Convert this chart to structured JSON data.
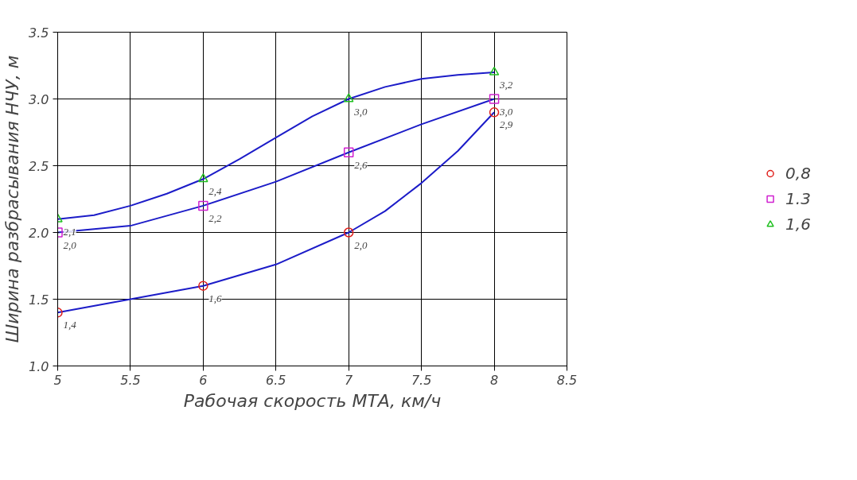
{
  "chart_data": {
    "type": "scatter",
    "xlabel": "Рабочая скорость МТА, км/ч",
    "ylabel": "Ширина разбрасывания НЧУ, м",
    "xlim": [
      5,
      8.5
    ],
    "ylim": [
      1.0,
      3.5
    ],
    "xticks": [
      {
        "value": 5,
        "label": "5"
      },
      {
        "value": 5.5,
        "label": "5.5"
      },
      {
        "value": 6,
        "label": "6"
      },
      {
        "value": 6.5,
        "label": "6.5"
      },
      {
        "value": 7,
        "label": "7"
      },
      {
        "value": 7.5,
        "label": "7.5"
      },
      {
        "value": 8,
        "label": "8"
      },
      {
        "value": 8.5,
        "label": "8.5"
      }
    ],
    "yticks": [
      {
        "value": 1.0,
        "label": "1.0"
      },
      {
        "value": 1.5,
        "label": "1.5"
      },
      {
        "value": 2.0,
        "label": "2.0"
      },
      {
        "value": 2.5,
        "label": "2.5"
      },
      {
        "value": 3.0,
        "label": "3.0"
      },
      {
        "value": 3.5,
        "label": "3.5"
      }
    ],
    "grid": true,
    "legend": "right",
    "line_style": "solid",
    "series": [
      {
        "type": "line",
        "color": "#1c1cc8",
        "x": [
          5,
          5.5,
          6,
          6.5,
          7,
          7.25,
          7.5,
          7.75,
          8
        ],
        "values": [
          1.4,
          1.5,
          1.6,
          1.76,
          2.0,
          2.16,
          2.37,
          2.61,
          2.9
        ]
      },
      {
        "type": "line",
        "color": "#1c1cc8",
        "x": [
          5,
          5.5,
          6,
          6.5,
          7,
          7.5,
          8
        ],
        "values": [
          2.0,
          2.05,
          2.2,
          2.38,
          2.6,
          2.81,
          3.0
        ]
      },
      {
        "type": "line",
        "color": "#1c1cc8",
        "x": [
          5,
          5.25,
          5.5,
          5.75,
          6,
          6.25,
          6.5,
          6.75,
          7,
          7.25,
          7.5,
          7.75,
          8
        ],
        "values": [
          2.1,
          2.13,
          2.2,
          2.29,
          2.4,
          2.55,
          2.71,
          2.87,
          3.0,
          3.09,
          3.15,
          3.18,
          3.2
        ]
      },
      {
        "name": "0,8",
        "color": "#e0201c",
        "marker": "circle",
        "x": [
          5,
          6,
          7,
          8
        ],
        "values": [
          1.4,
          1.6,
          2.0,
          2.9
        ],
        "value_labels": [
          "1,4",
          "1,6",
          "2,0",
          "2,9"
        ]
      },
      {
        "name": "1.3",
        "color": "#d020d0",
        "marker": "square",
        "x": [
          5,
          6,
          7,
          8
        ],
        "values": [
          2.0,
          2.2,
          2.6,
          3.0
        ],
        "value_labels": [
          "2,0",
          "2,2",
          "2,6",
          "3,0"
        ]
      },
      {
        "name": "1,6",
        "color": "#20c020",
        "marker": "triangle",
        "x": [
          5,
          6,
          7,
          8
        ],
        "values": [
          2.1,
          2.4,
          3.0,
          3.2
        ],
        "value_labels": [
          "2,1",
          "2,4",
          "3,0",
          "3,2"
        ]
      }
    ]
  }
}
